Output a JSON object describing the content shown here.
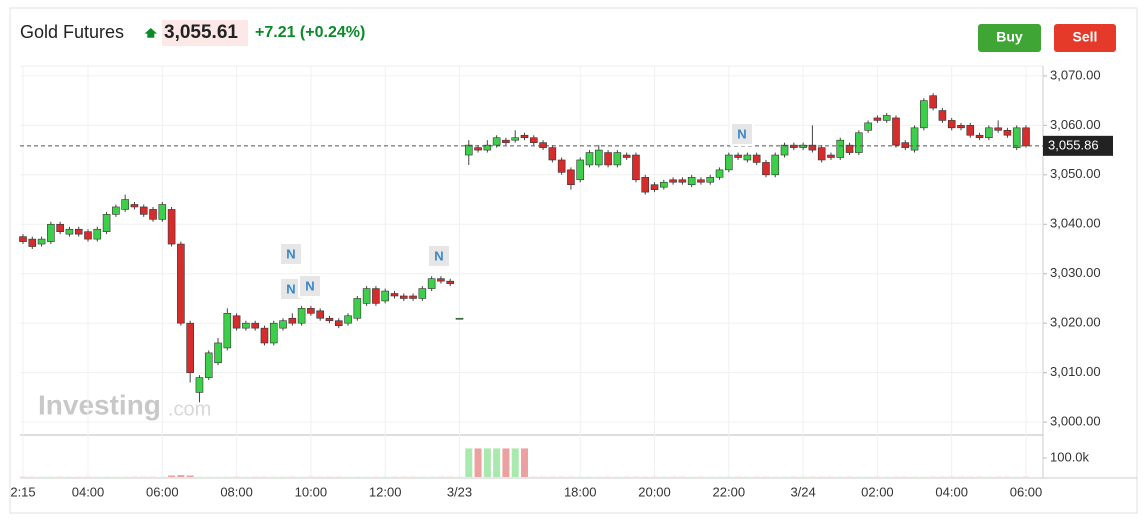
{
  "header": {
    "instrument": "Gold Futures",
    "price": "3,055.61",
    "change": "+7.21 (+0.24%)"
  },
  "buttons": {
    "buy": "Buy",
    "sell": "Sell"
  },
  "watermark": {
    "brand": "Investing",
    "domain": ".com"
  },
  "news_markers": [
    "N",
    "N",
    "N",
    "N",
    "N"
  ],
  "chart_data": {
    "type": "candlestick",
    "up_color": "#3ecf4a",
    "down_color": "#d62c2c",
    "categories": [
      "2:15",
      null,
      null,
      null,
      null,
      null,
      null,
      "04:00",
      null,
      null,
      null,
      null,
      null,
      null,
      null,
      "06:00",
      null,
      null,
      null,
      null,
      null,
      null,
      null,
      "08:00",
      null,
      null,
      null,
      null,
      null,
      null,
      null,
      "10:00",
      null,
      null,
      null,
      null,
      null,
      null,
      null,
      "12:00",
      null,
      null,
      null,
      null,
      null,
      null,
      null,
      "3/23",
      null,
      null,
      null,
      null,
      null,
      null,
      null,
      null,
      null,
      null,
      null,
      null,
      "18:00",
      null,
      null,
      null,
      null,
      null,
      null,
      null,
      "20:00",
      null,
      null,
      null,
      null,
      null,
      null,
      null,
      "22:00",
      null,
      null,
      null,
      null,
      null,
      null,
      null,
      "3/24",
      null,
      null,
      null,
      null,
      null,
      null,
      null,
      "02:00",
      null,
      null,
      null,
      null,
      null,
      null,
      null,
      "04:00",
      null,
      null,
      null,
      null,
      null,
      null,
      null,
      "06:00"
    ],
    "open": [
      3037.5,
      3037,
      3036,
      3036.5,
      3040,
      3038,
      3039,
      3038.5,
      3037,
      3038.5,
      3042,
      3043,
      3044,
      3043.5,
      3043,
      3041,
      3043,
      3036,
      3020,
      3006,
      3009,
      3012,
      3015,
      3021.5,
      3019,
      3020,
      3019,
      3016,
      3019,
      3021,
      3020,
      3023,
      3022.5,
      3021,
      3020.5,
      3020,
      3021,
      3024,
      3027,
      3024.5,
      3026,
      3025.5,
      3025.5,
      3025,
      3027,
      3029,
      3028.5,
      3021,
      3054,
      3055.5,
      3055,
      3056,
      3057,
      3057,
      3058,
      3057.5,
      3056.5,
      3055.5,
      3053,
      3051,
      3049,
      3052,
      3052,
      3054.5,
      3052,
      3054,
      3054,
      3049.5,
      3048,
      3047.5,
      3049,
      3049,
      3048,
      3049,
      3048.5,
      3049.5,
      3051,
      3054,
      3053,
      3054,
      3052.5,
      3050,
      3054,
      3056,
      3055.5,
      3056,
      3055.5,
      3054,
      3053.5,
      3056,
      3054.5,
      3059,
      3061.5,
      3061,
      3061.5,
      3056.5,
      3055,
      3059.5,
      3066,
      3063,
      3061,
      3060,
      3060,
      3058,
      3057.5,
      3059.5,
      3059,
      3055.5,
      3059.5
    ],
    "high": [
      3038,
      3037.5,
      3037.5,
      3040.5,
      3040.5,
      3039.5,
      3039.5,
      3039,
      3039.5,
      3042.5,
      3044,
      3046,
      3044.5,
      3044,
      3043.5,
      3044.5,
      3043.5,
      3036.5,
      3020.5,
      3009.5,
      3014.5,
      3017,
      3023,
      3022,
      3020.5,
      3020.5,
      3019.5,
      3020.5,
      3021,
      3022,
      3023.5,
      3023.5,
      3023,
      3021.5,
      3021,
      3022,
      3025.5,
      3027.5,
      3027.5,
      3027,
      3026.5,
      3026,
      3026,
      3027.5,
      3029.5,
      3029.5,
      3029,
      3021,
      3057,
      3056,
      3057,
      3058,
      3057.5,
      3059,
      3058.5,
      3058,
      3057,
      3056,
      3053.5,
      3051.5,
      3053.5,
      3055,
      3056,
      3055,
      3055,
      3054.5,
      3054.5,
      3050,
      3048.5,
      3049,
      3049.5,
      3049.5,
      3050,
      3049.5,
      3050,
      3051.5,
      3054.5,
      3054.5,
      3054.5,
      3054.5,
      3053,
      3054.5,
      3056.5,
      3056.5,
      3056.5,
      3060,
      3056,
      3054.5,
      3057.5,
      3056.5,
      3059,
      3061,
      3062,
      3062.5,
      3062,
      3057,
      3060,
      3065.5,
      3066.5,
      3063.5,
      3061.5,
      3060.5,
      3060.5,
      3058.5,
      3060,
      3061,
      3059.5,
      3060,
      3060
    ],
    "low": [
      3036,
      3035,
      3035.5,
      3036,
      3038,
      3037.5,
      3037.5,
      3036.5,
      3036.5,
      3038,
      3041.5,
      3042.5,
      3043,
      3041.5,
      3040.5,
      3040.5,
      3035.5,
      3019.5,
      3008,
      3004,
      3008.5,
      3011.5,
      3014.5,
      3018.5,
      3018.5,
      3018.5,
      3015.5,
      3015.5,
      3018.5,
      3019.5,
      3019.5,
      3021.5,
      3020.5,
      3020,
      3019,
      3019.5,
      3020.5,
      3023.5,
      3023.5,
      3024,
      3025,
      3024.5,
      3024.5,
      3024.5,
      3026.5,
      3028,
      3027.5,
      3021,
      3052,
      3054.5,
      3054.5,
      3055.5,
      3056,
      3056.5,
      3057,
      3056,
      3055,
      3052.5,
      3050,
      3047,
      3048.5,
      3051.5,
      3051.5,
      3051.5,
      3051.5,
      3053,
      3048.5,
      3046,
      3046.5,
      3047,
      3048,
      3048,
      3047.5,
      3048,
      3048,
      3049,
      3050.5,
      3053,
      3052.5,
      3052,
      3049.5,
      3049.5,
      3053.5,
      3055,
      3055,
      3054.5,
      3052.5,
      3053,
      3053,
      3054,
      3054,
      3058.5,
      3060.5,
      3060.5,
      3055.5,
      3055,
      3054.5,
      3059,
      3063,
      3060.5,
      3059,
      3059,
      3057.5,
      3057,
      3057,
      3058.5,
      3057.5,
      3055,
      3055.5
    ],
    "close": [
      3036.5,
      3035.5,
      3037,
      3040,
      3038.5,
      3039,
      3038,
      3037,
      3039,
      3042,
      3043.5,
      3045,
      3043.5,
      3042,
      3041,
      3044,
      3036,
      3020,
      3010,
      3009,
      3014,
      3016,
      3022,
      3019,
      3020,
      3019,
      3016,
      3020,
      3020.5,
      3020,
      3023,
      3022,
      3021,
      3020.5,
      3019.5,
      3021.5,
      3025,
      3027,
      3024,
      3026.5,
      3025.5,
      3025,
      3025,
      3027,
      3029,
      3028.5,
      3028,
      3021,
      3056,
      3055,
      3056,
      3057.5,
      3056.5,
      3057.5,
      3057.5,
      3056.5,
      3055.5,
      3053,
      3050.5,
      3048,
      3053,
      3054.5,
      3055,
      3052,
      3054.5,
      3053.5,
      3049,
      3046.5,
      3047,
      3048.5,
      3048.5,
      3048.5,
      3049.5,
      3048.5,
      3049.5,
      3051,
      3054,
      3053.5,
      3054,
      3052.5,
      3050,
      3054,
      3056,
      3055.5,
      3056,
      3055,
      3053,
      3053.5,
      3057,
      3054.5,
      3058.5,
      3060.5,
      3061,
      3062,
      3056,
      3055.5,
      3059.5,
      3065,
      3063.5,
      3061,
      3059.5,
      3059.5,
      3058,
      3057.5,
      3059.5,
      3059,
      3058,
      3059.5,
      3055.86
    ],
    "volume": [
      1000,
      1000,
      1000,
      1000,
      1000,
      1000,
      1000,
      1000,
      1000,
      1000,
      1000,
      1000,
      1000,
      1000,
      1000,
      1000,
      8000,
      10000,
      8000,
      1000,
      1000,
      1000,
      1000,
      1000,
      1000,
      1000,
      1000,
      1000,
      1000,
      1000,
      1000,
      1000,
      1000,
      1000,
      1000,
      1000,
      1000,
      1000,
      1000,
      1000,
      1000,
      1000,
      1000,
      1000,
      1000,
      1000,
      1000,
      1000,
      150000,
      150000,
      150000,
      150000,
      150000,
      150000,
      150000,
      1000,
      1000,
      1000,
      1000,
      1000,
      1000,
      1000,
      1000,
      1000,
      1000,
      1000,
      1000,
      1000,
      1000,
      1000,
      1000,
      1000,
      1000,
      1000,
      1000,
      1000,
      1000,
      1000,
      1000,
      1000,
      1000,
      1000,
      1000,
      1000,
      1000,
      1000,
      1000,
      1000,
      1000,
      1000,
      1000,
      1000,
      1000,
      1000,
      1000,
      1000,
      1000,
      1000,
      1000,
      1000,
      1000,
      1000,
      1000,
      1000,
      1000,
      1000,
      1000,
      1000,
      1000
    ],
    "ylim": [
      2998,
      3072
    ],
    "yticks": [
      {
        "value": 3000,
        "label": "3,000.00"
      },
      {
        "value": 3010,
        "label": "3,010.00"
      },
      {
        "value": 3020,
        "label": "3,020.00"
      },
      {
        "value": 3030,
        "label": "3,030.00"
      },
      {
        "value": 3040,
        "label": "3,040.00"
      },
      {
        "value": 3050,
        "label": "3,050.00"
      },
      {
        "value": 3060,
        "label": "3,060.00"
      },
      {
        "value": 3070,
        "label": "3,070.00"
      }
    ],
    "volume_ylim": [
      0,
      210000
    ],
    "volume_yticks": [
      {
        "value": 100000,
        "label": "100.0k"
      }
    ],
    "last_price": {
      "value": 3055.86,
      "label": "3,055.86"
    },
    "grid": true
  }
}
